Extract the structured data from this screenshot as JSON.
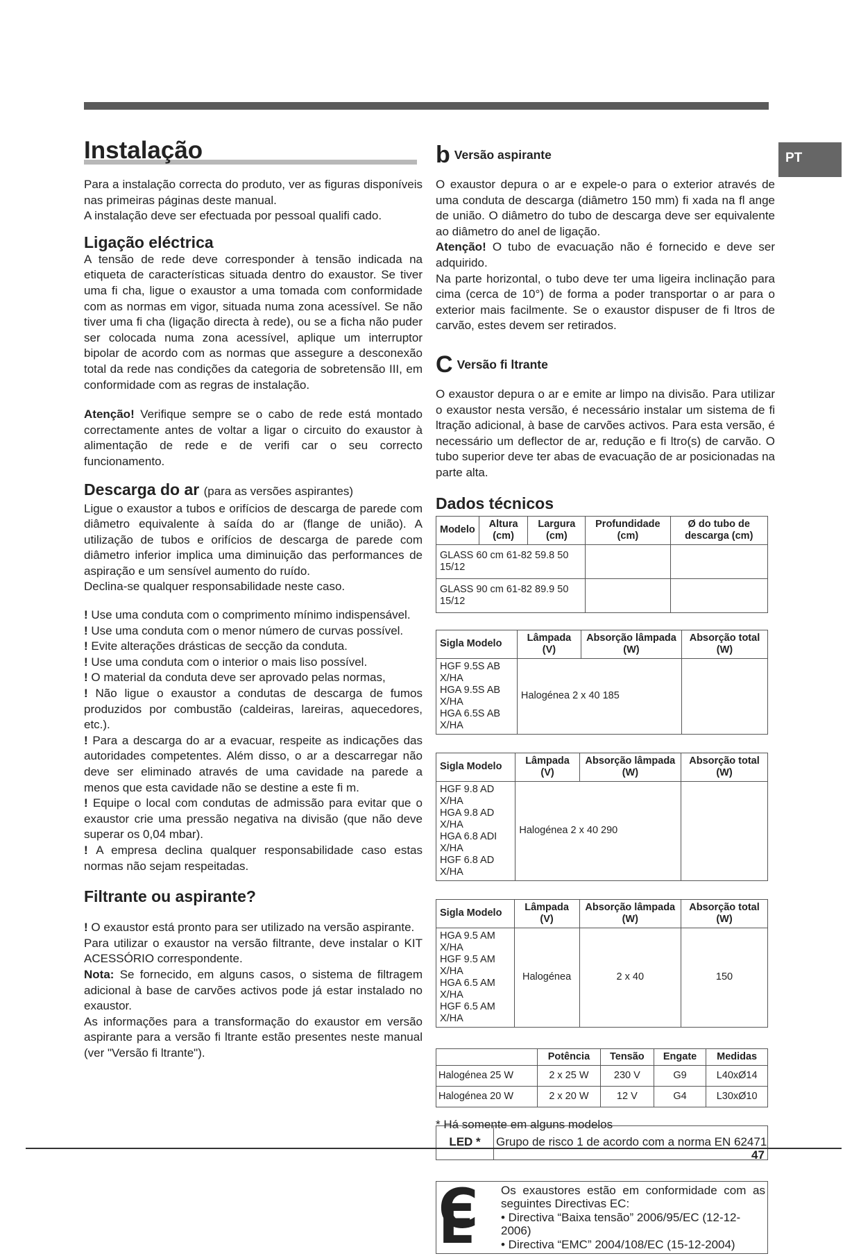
{
  "lang_tab": "PT",
  "page_number": "47",
  "left": {
    "title": "Instalação",
    "intro": [
      "Para a instalação correcta do produto, ver as figuras disponíveis nas primeiras páginas deste manual.",
      "A instalação deve ser efectuada por pessoal qualifi cado."
    ],
    "electric_title": "Ligação eléctrica",
    "electric_text": "A tensão de rede deve corresponder à tensão indicada na etiqueta de características situada dentro do exaustor. Se tiver uma fi cha, ligue o exaustor a uma tomada com conformidade com as normas em vigor, situada numa zona acessível. Se não tiver uma fi cha (ligação directa à rede), ou se a ficha não puder ser colocada numa zona acessível, aplique um interruptor bipolar de acordo com as normas que assegure a desconexão total da rede nas condições da categoria de sobretensão III, em conformidade com as regras de instalação.",
    "attention_label": "Atenção!",
    "attention_text": " Verifique sempre se o cabo de rede está montado correctamente antes de voltar a ligar o circuito do exaustor à alimentação de rede e de verifi car o seu correcto funcionamento.",
    "discharge_title": "Descarga do ar",
    "discharge_sub": "(para as versões aspirantes)",
    "discharge_text": "Ligue o exaustor a tubos e orifícios de descarga de parede com diâmetro equivalente à saída do ar (flange de união). A utilização de tubos e orifícios de descarga de parede com diâmetro inferior implica uma diminuição das performances de aspiração e um sensível aumento do ruído.",
    "discharge_text2": "Declina-se qualquer responsabilidade neste caso.",
    "warnings": [
      "Use uma conduta com o comprimento mínimo indispensável.",
      "Use uma conduta com o menor número de curvas possível.",
      "Evite alterações drásticas de secção da conduta.",
      "Use uma conduta com o interior o mais liso possível.",
      "O material da conduta deve ser aprovado pelas normas,",
      "Não ligue o exaustor a condutas de descarga de fumos produzidos por combustão (caldeiras, lareiras, aquecedores, etc.).",
      "Para a descarga do ar a evacuar, respeite as indicações das autoridades competentes. Além disso, o ar a descarregar não deve ser eliminado através de uma cavidade na parede a menos que esta cavidade não se destine a este fi m.",
      "Equipe o local com condutas de admissão para evitar que o exaustor crie uma pressão negativa na divisão (que não deve superar os 0,04 mbar).",
      "A empresa declina qualquer responsabilidade caso estas normas não sejam respeitadas."
    ],
    "filter_title": "Filtrante ou aspirante?",
    "filter_text1": "O exaustor está pronto para ser utilizado na versão aspirante.",
    "filter_text2": "Para utilizar o exaustor na versão filtrante, deve instalar o KIT ACESSÓRIO correspondente.",
    "note_label": "Nota:",
    "note_text": " Se fornecido, em alguns casos, o sistema de filtragem adicional à base de carvões activos pode já estar instalado no exaustor.",
    "filter_text3": "As informações para a transformação do exaustor em versão aspirante para a versão fi ltrante estão presentes neste manual (ver \"Versão fi ltrante\")."
  },
  "right": {
    "asp_icon": "b",
    "asp_title": "Versão aspirante",
    "asp_text": "O exaustor depura o ar e expele-o para o exterior através de uma conduta de descarga (diâmetro 150 mm) fi xada na fl ange de união. O diâmetro do tubo de descarga deve ser equivalente ao diâmetro do anel de ligação.",
    "asp_att_label": "Atenção!",
    "asp_att_text": " O tubo de evacuação não é fornecido e deve ser adquirido.",
    "asp_text2": "Na parte horizontal, o tubo deve ter uma ligeira inclinação para cima (cerca de 10°) de forma a poder transportar o ar para o exterior mais facilmente. Se o exaustor dispuser de fi ltros de carvão, estes devem ser retirados.",
    "fil_icon": "C",
    "fil_title": "Versão fi ltrante",
    "fil_text": "O exaustor depura o ar e emite ar limpo na divisão. Para utilizar o exaustor nesta versão, é necessário instalar um sistema de fi ltração adicional, à base de carvões activos. Para esta versão, é necessário um deflector de ar, redução e fi ltro(s) de carvão. O tubo superior deve ter abas de evacuação de ar posicionadas na parte alta.",
    "tech_title": "Dados técnicos",
    "t1": {
      "headers": [
        "Modelo",
        "Altura (cm)",
        "Largura (cm)",
        "Profundidade (cm)",
        "Ø do tubo de descarga (cm)"
      ],
      "rows": [
        "GLASS 60 cm 61-82 59.8 50 15/12",
        "GLASS 90 cm 61-82 89.9 50 15/12"
      ]
    },
    "t2": {
      "headers": [
        "Sigla Modelo",
        "Lâmpada (V)",
        "Absorção lâmpada (W)",
        "Absorção total (W)"
      ],
      "models": [
        "HGF 9.5S AB X/HA",
        "HGA 9.5S AB X/HA",
        "HGA 6.5S AB X/HA"
      ],
      "values": "Halogénea 2 x 40 185"
    },
    "t3": {
      "headers": [
        "Sigla Modelo",
        "Lâmpada (V)",
        "Absorção lâmpada (W)",
        "Absorção total (W)"
      ],
      "models": [
        "HGF 9.8 AD X/HA",
        "HGA 9.8 AD X/HA",
        "HGA 6.8 ADI X/HA",
        "HGF 6.8 AD X/HA"
      ],
      "values": "Halogénea 2 x 40 290"
    },
    "t4": {
      "headers": [
        "Sigla Modelo",
        "Lâmpada (V)",
        "Absorção lâmpada (W)",
        "Absorção total (W)"
      ],
      "models": [
        "HGA 9.5 AM X/HA",
        "HGF 9.5 AM X/HA",
        "HGA 6.5 AM X/HA",
        "HGF 6.5 AM X/HA"
      ],
      "lamp": "Halogénea",
      "abs": "2 x 40",
      "total": "150"
    },
    "t5": {
      "headers": [
        "",
        "Potência",
        "Tensão",
        "Engate",
        "Medidas"
      ],
      "rows": [
        [
          "Halogénea 25 W",
          "2 x 25 W",
          "230 V",
          "G9",
          "L40xØ14"
        ],
        [
          "Halogénea 20 W",
          "2 x 20 W",
          "12 V",
          "G4",
          "L30xØ10"
        ]
      ]
    },
    "led_label": "LED *",
    "led_text": "Grupo de risco 1 de acordo com a norma EN 62471",
    "ce_logo": "CE",
    "ce_lines": [
      "Os exaustores estão em conformidade com as seguintes Directivas EC:",
      "• Directiva “Baixa tensão” 2006/95/EC (12-12-2006)",
      "• Directiva “EMC” 2004/108/EC (15-12-2004)"
    ],
    "footnote": "* Há somente em alguns modelos"
  }
}
